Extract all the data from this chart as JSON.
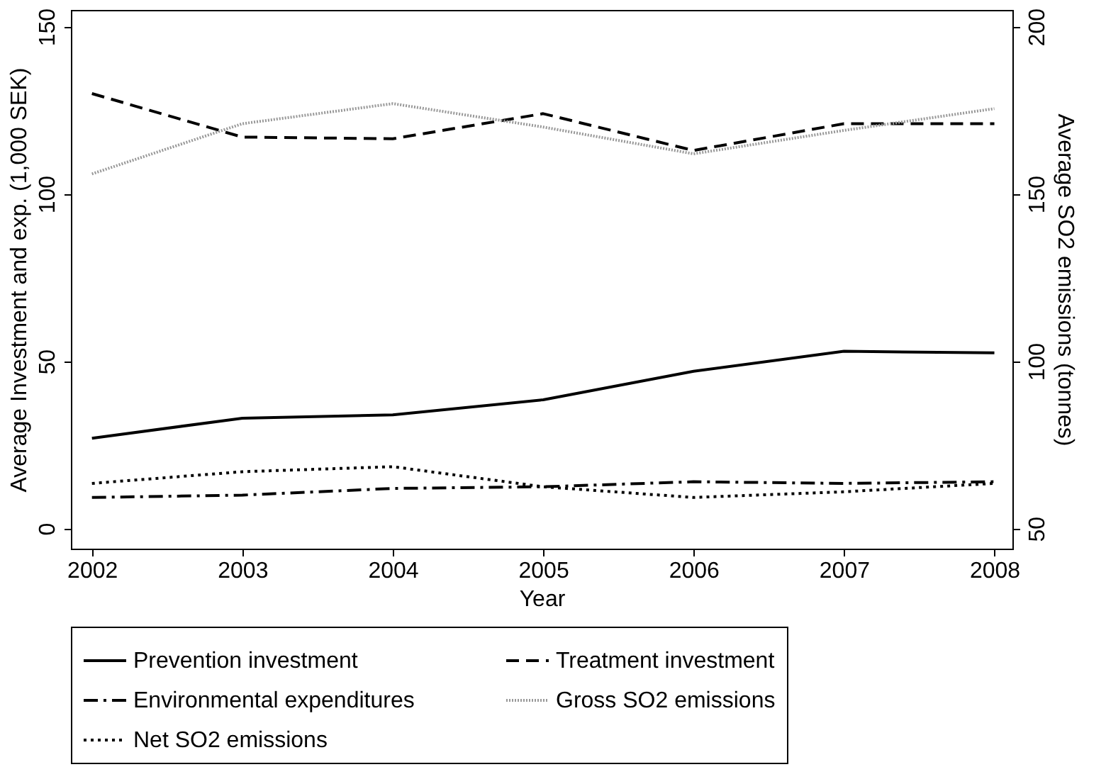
{
  "chart_data": {
    "type": "line",
    "xlabel": "Year",
    "ylabel": "Average Investment and exp. (1,000 SEK)",
    "y2label": "Average SO2 emissions (tonnes)",
    "x": [
      2002,
      2003,
      2004,
      2005,
      2006,
      2007,
      2008
    ],
    "xlim": [
      2001.86,
      2008.12
    ],
    "xticks": [
      2002,
      2003,
      2004,
      2005,
      2006,
      2007,
      2008
    ],
    "ylim": [
      -6,
      155
    ],
    "yticks": [
      0,
      50,
      100,
      150
    ],
    "y2lim": [
      44,
      205
    ],
    "y2ticks": [
      50,
      100,
      150,
      200
    ],
    "grid": false,
    "legend": "bottom",
    "marker": "none",
    "series": [
      {
        "name": "Prevention investment",
        "color": "#000000",
        "line_style": "solid",
        "values": [
          27,
          33,
          34,
          38.5,
          47,
          53,
          52.5
        ]
      },
      {
        "name": "Treatment investment",
        "color": "#000000",
        "line_style": "dashed",
        "values": [
          130,
          117,
          116.5,
          124,
          113,
          121,
          121
        ]
      },
      {
        "name": "Environmental expenditures",
        "color": "#000000",
        "line_style": "dashdot",
        "values": [
          9.3,
          10,
          12,
          12.5,
          14,
          13.5,
          14
        ]
      },
      {
        "name": "Gross SO2 emissions",
        "color": "#999999",
        "line_style": "dotted",
        "axis": "y2",
        "values": [
          156,
          171,
          177,
          170,
          162,
          169,
          175.5
        ]
      },
      {
        "name": "Net SO2 emissions",
        "color": "#000000",
        "line_style": "dotted",
        "axis": "y2",
        "values": [
          63.5,
          67,
          68.5,
          62.5,
          59.3,
          61,
          63.5
        ]
      }
    ]
  }
}
